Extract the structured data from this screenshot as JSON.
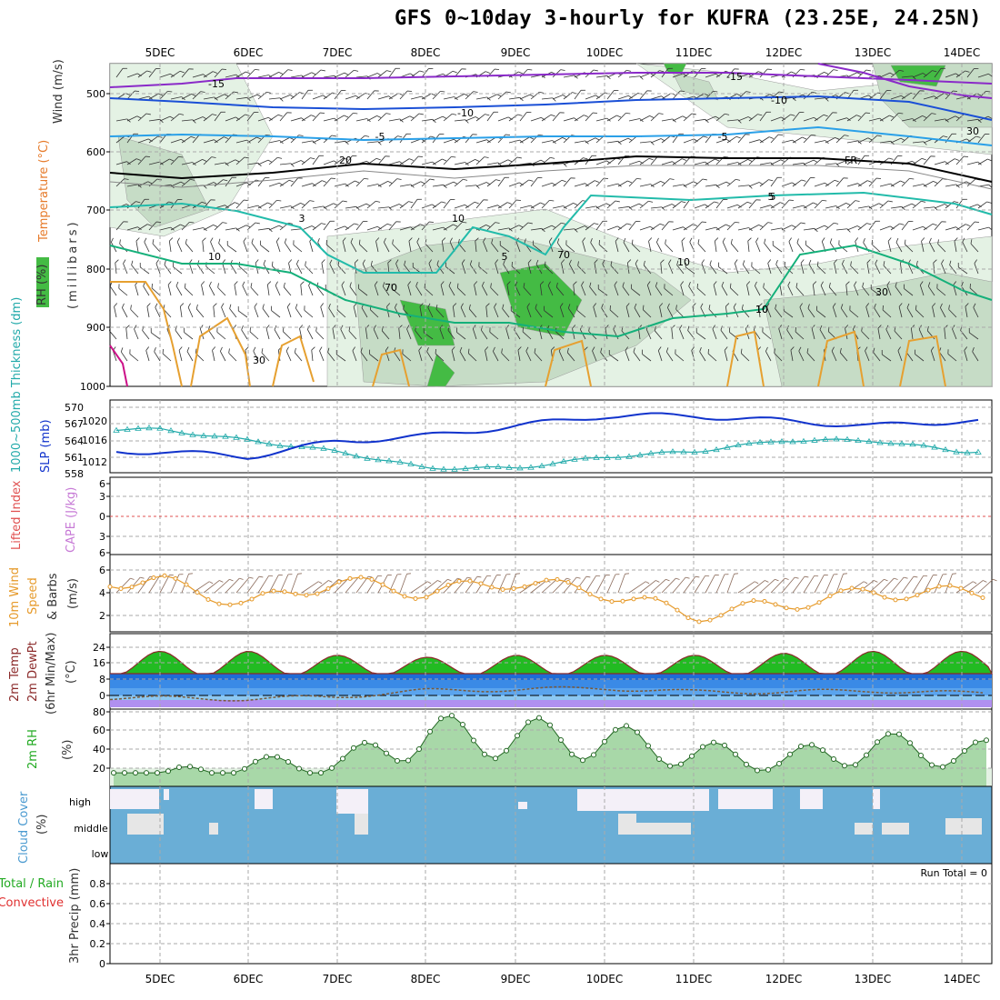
{
  "title": "GFS 0~10day 3-hourly for KUFRA (23.25E, 24.25N)",
  "dates": [
    "5DEC",
    "6DEC",
    "7DEC",
    "8DEC",
    "9DEC",
    "10DEC",
    "11DEC",
    "12DEC",
    "13DEC",
    "14DEC"
  ],
  "colors": {
    "rh_green": "#44bb44",
    "rh_light": "#e4f2e4",
    "rh_mid": "#c6dcc6",
    "slp": "#1133cc",
    "thick": "#22aaaa",
    "li_zero": "#e05050",
    "wind_speed": "#e69a2a",
    "temp_line": "#8b2a2a",
    "dew_line": "#7a5a3a",
    "cloud": "#6aaed6",
    "cloud_clear": "#f4f0f8"
  },
  "panels": {
    "upper": {
      "label_wind": "Wind (m/s)",
      "label_temp": "Temperature (°C)",
      "label_rh": "RH (%)",
      "label_mb": "(millibars)",
      "levels": [
        "500",
        "600",
        "700",
        "800",
        "900",
        "1000"
      ],
      "contours": [
        "-15",
        "-15",
        "-10",
        "-10",
        "-5",
        "-5",
        "FR",
        "5",
        "5",
        "3",
        "10",
        "10",
        "5",
        "10",
        "70",
        "30",
        "30",
        "10",
        "10",
        "30",
        "70",
        "20"
      ]
    },
    "pressure": {
      "label_thick": "1000~500mb Thickness (dm)",
      "label_slp": "SLP (mb)",
      "thick_ticks": [
        "570",
        "567",
        "564",
        "561",
        "558"
      ],
      "slp_ticks": [
        "1020",
        "1016",
        "1012"
      ]
    },
    "stability": {
      "label_li": "Lifted Index",
      "label_cape": "CAPE (J/kg)",
      "ticks": [
        "6",
        "3",
        "0",
        "3",
        "6"
      ]
    },
    "wind10m": {
      "label_a": "10m Wind",
      "label_b": "Speed",
      "label_c": "& Barbs",
      "unit": "(m/s)",
      "ticks": [
        "6",
        "4",
        "2"
      ]
    },
    "temp2m": {
      "label_a": "2m Temp",
      "label_b": "2m DewPt",
      "label_c": "(6hr Min/Max)",
      "unit": "(°C)",
      "ticks": [
        "24",
        "16",
        "8",
        "0",
        "-8"
      ]
    },
    "rh2m": {
      "label": "2m RH",
      "unit": "(%)",
      "ticks": [
        "80",
        "60",
        "40",
        "20"
      ]
    },
    "cloud": {
      "label": "Cloud Cover",
      "unit": "(%)",
      "levels": [
        "high",
        "middle",
        "low"
      ]
    },
    "precip": {
      "label_a": "Total / Rain",
      "label_b": "Convective",
      "label_c": "3hr Precip (mm)",
      "run_total": "Run Total = 0",
      "ticks": [
        "0.8",
        "0.6",
        "0.4",
        "0.2",
        "0"
      ]
    }
  },
  "chart_data": [
    {
      "type": "line",
      "title": "SLP (mb)",
      "x_dates": [
        "5DEC",
        "6DEC",
        "7DEC",
        "8DEC",
        "9DEC",
        "10DEC",
        "11DEC",
        "12DEC",
        "13DEC",
        "14DEC"
      ],
      "series": [
        {
          "name": "SLP (mb)",
          "values": [
            1014,
            1013,
            1016,
            1017,
            1019,
            1021,
            1021,
            1020,
            1019,
            1020
          ]
        }
      ],
      "ylim": [
        1010,
        1022
      ]
    },
    {
      "type": "line",
      "title": "1000~500mb Thickness (dm)",
      "series": [
        {
          "name": "Thickness",
          "values": [
            566,
            564,
            562,
            559,
            559,
            561,
            562,
            564,
            564,
            562
          ]
        }
      ],
      "ylim": [
        558,
        571
      ]
    },
    {
      "type": "line",
      "title": "10m Wind Speed (m/s)",
      "series": [
        {
          "name": "Speed",
          "values": [
            5,
            3,
            5,
            4,
            5,
            4,
            2,
            3,
            4,
            4
          ]
        }
      ],
      "ylim": [
        1,
        7
      ]
    },
    {
      "type": "area",
      "title": "2m Temp (°C)",
      "series": [
        {
          "name": "Temp",
          "values": [
            22,
            22,
            20,
            19,
            20,
            20,
            20,
            21,
            22,
            22
          ]
        },
        {
          "name": "DewPt",
          "values": [
            -2,
            -3,
            -1,
            4,
            5,
            6,
            3,
            3,
            4,
            2
          ]
        }
      ],
      "ylim": [
        -10,
        30
      ]
    },
    {
      "type": "line",
      "title": "2m RH (%)",
      "series": [
        {
          "name": "RH",
          "values": [
            18,
            32,
            35,
            77,
            75,
            70,
            50,
            40,
            60,
            50
          ]
        }
      ],
      "ylim": [
        10,
        90
      ]
    },
    {
      "type": "bar",
      "title": "3hr Precip (mm)",
      "series": [
        {
          "name": "Precip",
          "values": [
            0,
            0,
            0,
            0,
            0,
            0,
            0,
            0,
            0,
            0
          ]
        }
      ],
      "ylim": [
        0,
        1
      ]
    }
  ]
}
